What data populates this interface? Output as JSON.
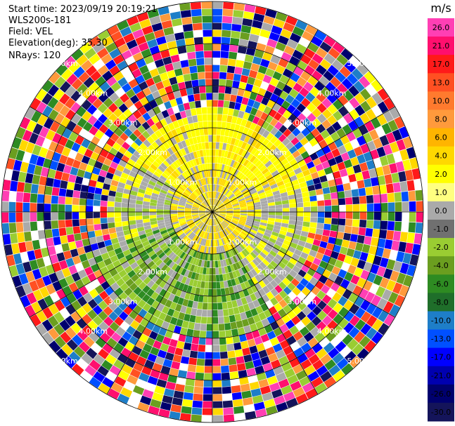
{
  "info": {
    "start_time": "Start time: 2023/09/19 20:19:21",
    "instrument": "WLS200s-181",
    "field": "Field: VEL",
    "elevation": "Elevation(deg): 35.30",
    "nrays": "NRays: 120"
  },
  "colorbar": {
    "unit": "m/s",
    "ticks": [
      "26.0",
      "21.0",
      "17.0",
      "13.0",
      "10.0",
      "8.0",
      "6.0",
      "4.0",
      "2.0",
      "1.0",
      "0.0",
      "-1.0",
      "-2.0",
      "-4.0",
      "-6.0",
      "-8.0",
      "-10.0",
      "-13.0",
      "-17.0",
      "-21.0",
      "-26.0",
      "-30.0"
    ],
    "colors": [
      "#ff3fb4",
      "#ff0f6e",
      "#ff1a1a",
      "#ff5022",
      "#ff7a2e",
      "#ff9a3c",
      "#ffb400",
      "#ffd800",
      "#ffff00",
      "#ffff80",
      "#aaaaaa",
      "#707070",
      "#9acd32",
      "#6b9e1f",
      "#2e8b22",
      "#1f6e2a",
      "#1e7ec8",
      "#0050ff",
      "#0000ff",
      "#0000b0",
      "#00006e",
      "#14145a"
    ]
  },
  "chart_data": {
    "type": "heatmap",
    "title": "",
    "projection": "polar-ppi",
    "rays": 120,
    "range_rings_km": [
      1.0,
      2.0,
      3.0,
      4.0,
      5.0
    ],
    "ring_labels": [
      "1.00km",
      "2.00km",
      "3.00km",
      "4.00km",
      "5.00km"
    ],
    "field": "VEL",
    "units": "m/s",
    "value_range": [
      -30.0,
      26.0
    ],
    "grid": true
  }
}
